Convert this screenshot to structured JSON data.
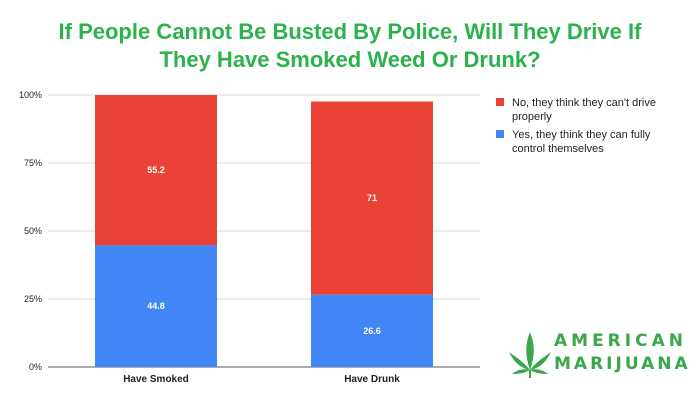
{
  "chart_data": {
    "type": "bar",
    "stacked": true,
    "title": "If People Cannot Be Busted By Police, Will They Drive If They Have Smoked Weed Or Drunk?",
    "title_lines": [
      "If People Cannot Be Busted By Police, Will They Drive If",
      "They Have Smoked Weed Or Drunk?"
    ],
    "categories": [
      "Have Smoked",
      "Have Drunk"
    ],
    "series": [
      {
        "name": "Yes, they think they can fully control themselves",
        "values": [
          44.8,
          26.6
        ],
        "color": "#4285f4"
      },
      {
        "name": "No, they think they can't drive properly",
        "values": [
          55.2,
          71
        ],
        "color": "#ea4335"
      }
    ],
    "legend_lines": [
      {
        "color": "#ea4335",
        "lines": [
          "No, they think they can't drive",
          "properly"
        ]
      },
      {
        "color": "#4285f4",
        "lines": [
          "Yes, they think they can fully",
          "control themselves"
        ]
      }
    ],
    "yticks": [
      "0%",
      "25%",
      "50%",
      "75%",
      "100%"
    ],
    "ylim": [
      0,
      100
    ],
    "grid": true,
    "legend_position": "top-right",
    "title_color": "#2bb24c"
  },
  "logo": {
    "line1": "AMERICAN",
    "line2": "MARIJUANA",
    "color": "#3aa84a"
  }
}
